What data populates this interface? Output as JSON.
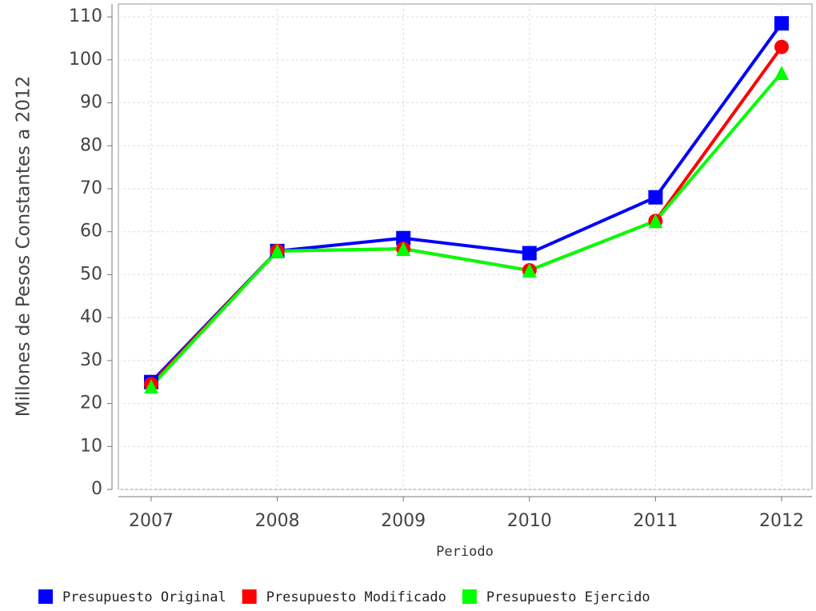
{
  "chart_data": {
    "type": "line",
    "y_label": "Millones de Pesos Constantes a 2012",
    "x_label": "Periodo",
    "categories": [
      "2007",
      "2008",
      "2009",
      "2010",
      "2011",
      "2012"
    ],
    "series": [
      {
        "name": "Presupuesto Original",
        "color": "#0000ff",
        "marker": "square",
        "values": [
          25,
          55.5,
          58.5,
          55,
          68,
          108.5
        ]
      },
      {
        "name": "Presupuesto Modificado",
        "color": "#ff0000",
        "marker": "circle",
        "values": [
          24.5,
          55.5,
          56,
          51,
          62.5,
          103
        ]
      },
      {
        "name": "Presupuesto Ejercido",
        "color": "#00ff00",
        "marker": "triangle",
        "values": [
          24,
          55.5,
          56,
          51,
          62.5,
          97
        ]
      }
    ],
    "ylim": [
      0,
      113
    ],
    "yticks": [
      0,
      10,
      20,
      30,
      40,
      50,
      60,
      70,
      80,
      90,
      100,
      110
    ],
    "grid": true,
    "legend": "bottom"
  }
}
